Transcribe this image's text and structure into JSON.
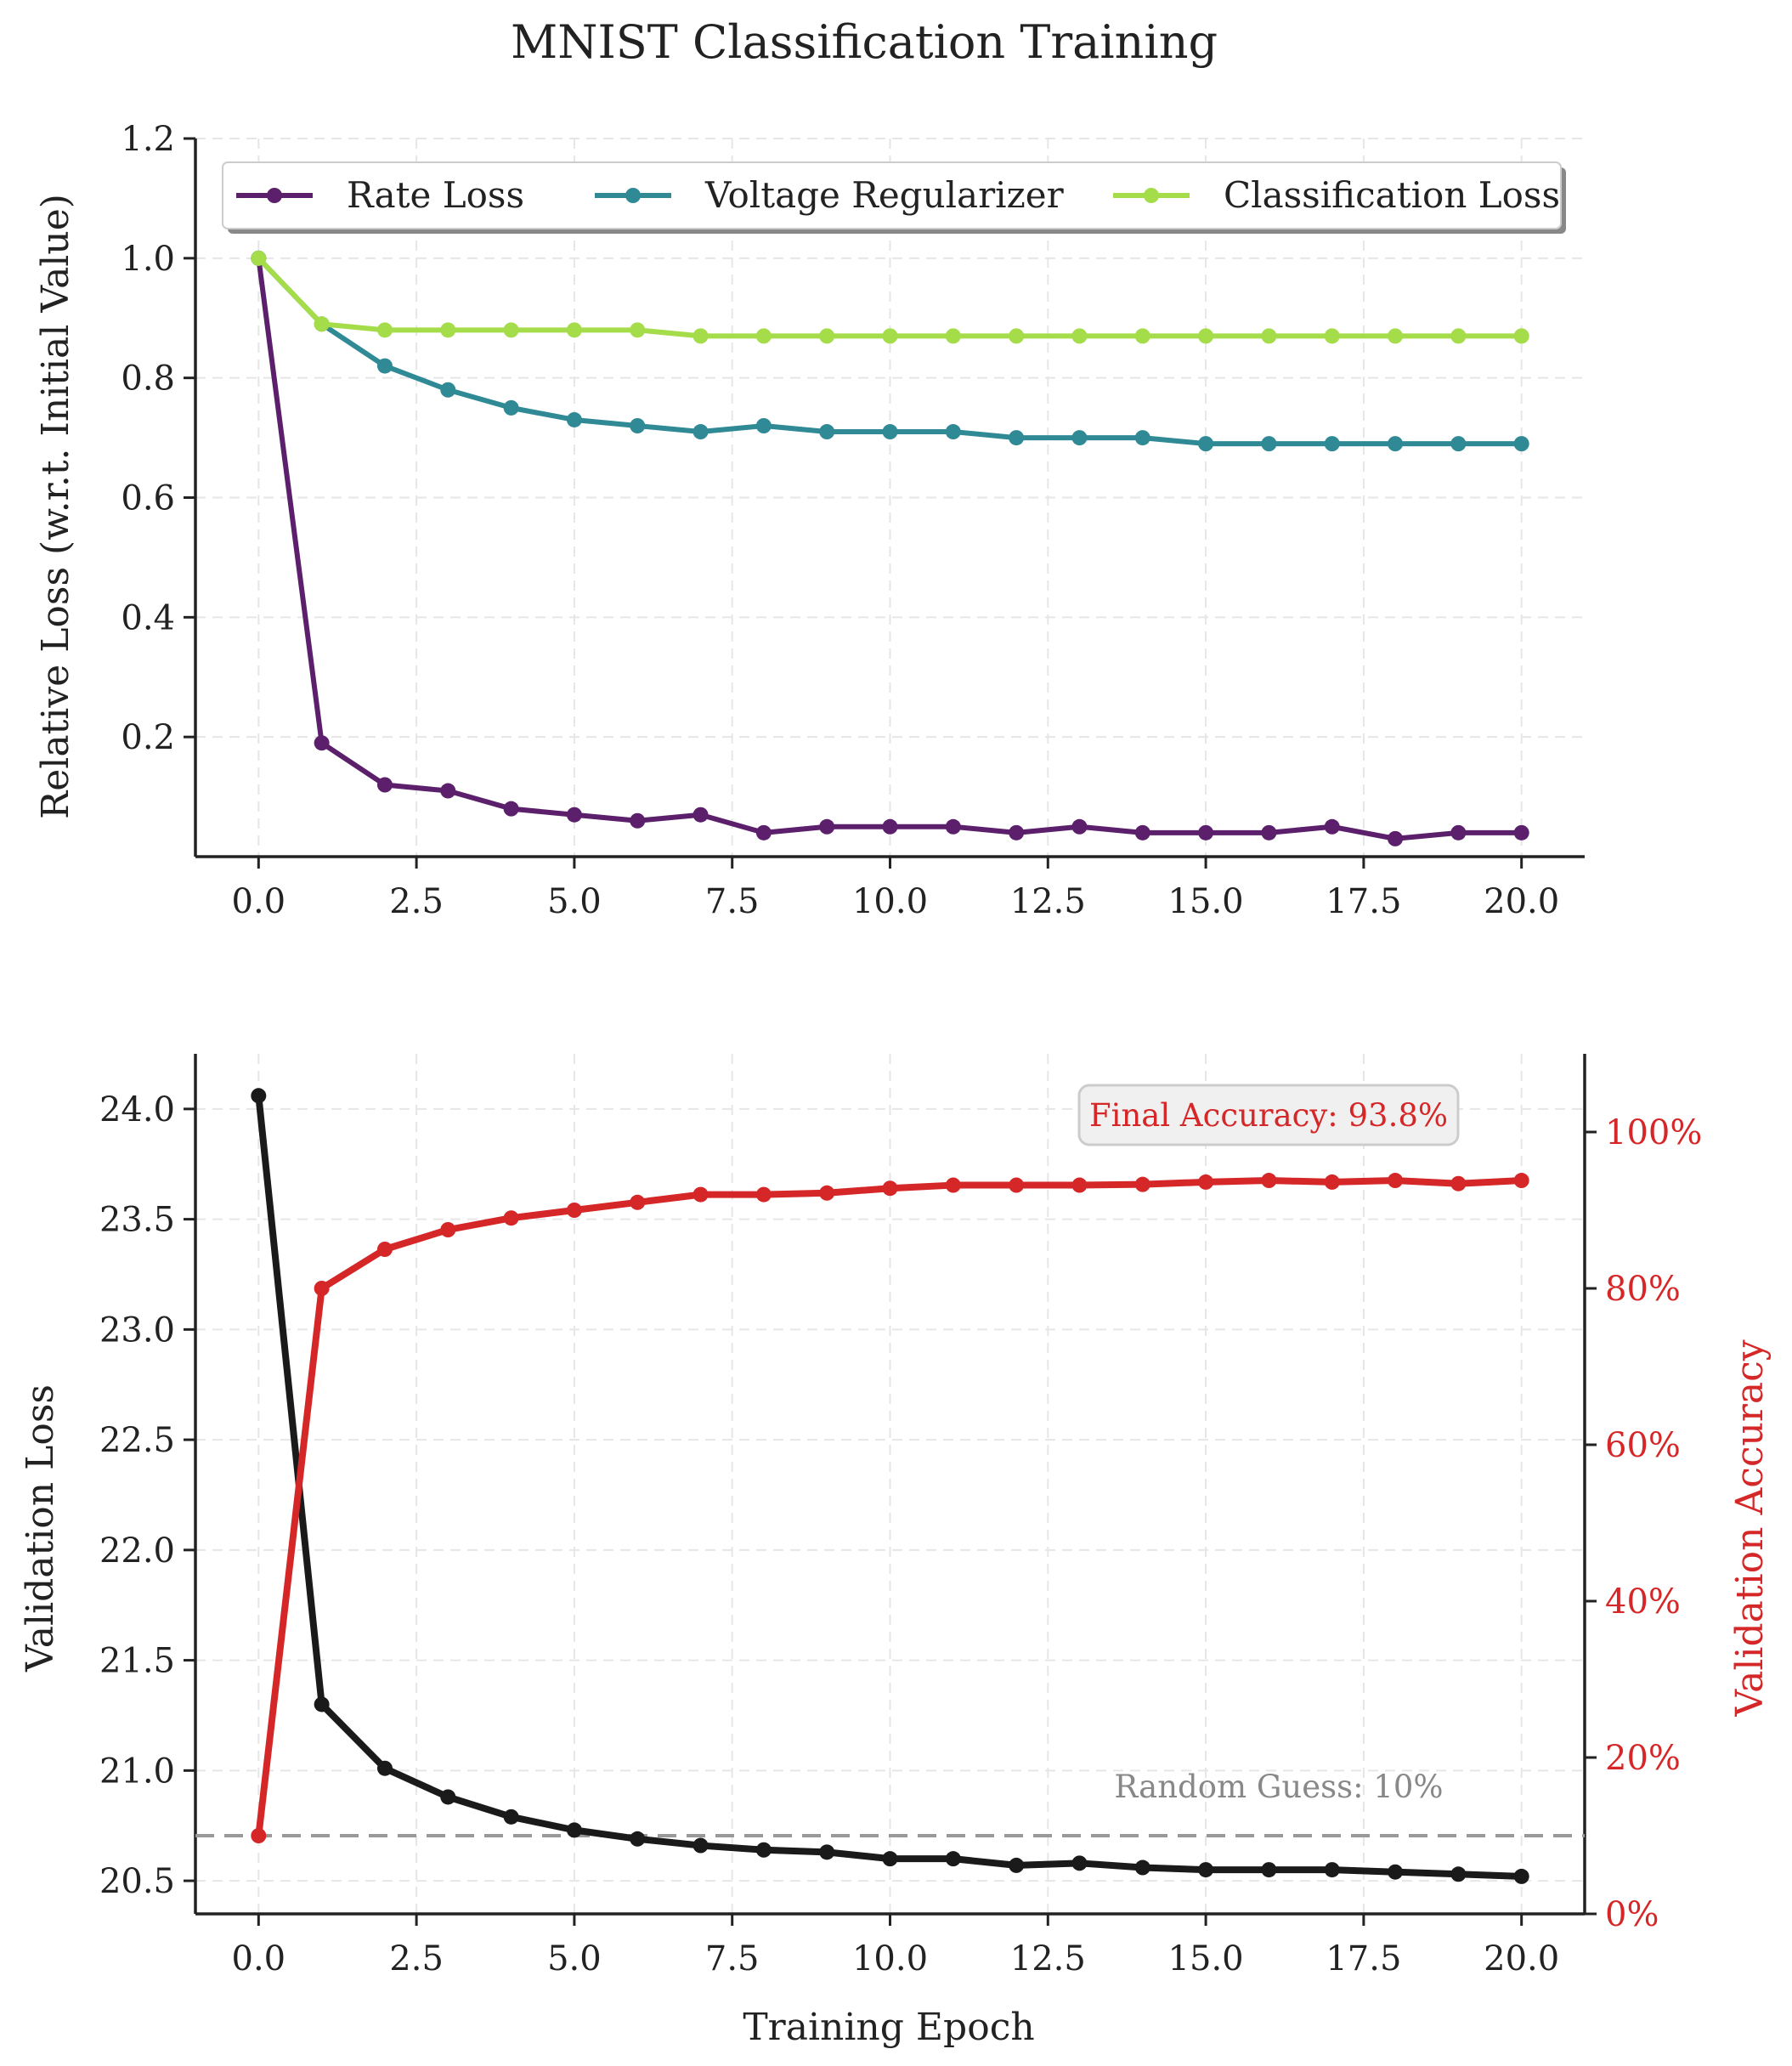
{
  "title": "MNIST Classification Training",
  "colors": {
    "rate_loss": "#5b1f6b",
    "voltage_regularizer": "#2f8a96",
    "classification_loss": "#a5dc4a",
    "validation_loss": "#1a1a1a",
    "validation_accuracy": "#d62728",
    "random_guess_line": "#999999"
  },
  "chart_data": [
    {
      "type": "line",
      "ylabel": "Relative Loss (w.r.t. Initial Value)",
      "xlim": [
        -1,
        21
      ],
      "ylim": [
        0.0,
        1.2
      ],
      "xticks": [
        "0.0",
        "2.5",
        "5.0",
        "7.5",
        "10.0",
        "12.5",
        "15.0",
        "17.5",
        "20.0"
      ],
      "yticks": [
        "0.2",
        "0.4",
        "0.6",
        "0.8",
        "1.0",
        "1.2"
      ],
      "grid": true,
      "legend_position": "top",
      "x": [
        0,
        1,
        2,
        3,
        4,
        5,
        6,
        7,
        8,
        9,
        10,
        11,
        12,
        13,
        14,
        15,
        16,
        17,
        18,
        19,
        20
      ],
      "series": [
        {
          "name": "Rate Loss",
          "values": [
            1.0,
            0.19,
            0.12,
            0.11,
            0.08,
            0.07,
            0.06,
            0.07,
            0.04,
            0.05,
            0.05,
            0.05,
            0.04,
            0.05,
            0.04,
            0.04,
            0.04,
            0.05,
            0.03,
            0.04,
            0.04
          ]
        },
        {
          "name": "Voltage Regularizer",
          "values": [
            1.0,
            0.89,
            0.82,
            0.78,
            0.75,
            0.73,
            0.72,
            0.71,
            0.72,
            0.71,
            0.71,
            0.71,
            0.7,
            0.7,
            0.7,
            0.69,
            0.69,
            0.69,
            0.69,
            0.69,
            0.69
          ]
        },
        {
          "name": "Classification Loss",
          "values": [
            1.0,
            0.89,
            0.88,
            0.88,
            0.88,
            0.88,
            0.88,
            0.87,
            0.87,
            0.87,
            0.87,
            0.87,
            0.87,
            0.87,
            0.87,
            0.87,
            0.87,
            0.87,
            0.87,
            0.87,
            0.87
          ]
        }
      ]
    },
    {
      "type": "line",
      "xlabel": "Training Epoch",
      "ylabel": "Validation Loss",
      "y2label": "Validation Accuracy",
      "xlim": [
        -1,
        21
      ],
      "ylim": [
        20.35,
        24.25
      ],
      "y2lim": [
        0,
        110
      ],
      "xticks": [
        "0.0",
        "2.5",
        "5.0",
        "7.5",
        "10.0",
        "12.5",
        "15.0",
        "17.5",
        "20.0"
      ],
      "yticks": [
        "20.5",
        "21.0",
        "21.5",
        "22.0",
        "22.5",
        "23.0",
        "23.5",
        "24.0"
      ],
      "y2ticks": [
        "0%",
        "20%",
        "40%",
        "60%",
        "80%",
        "100%"
      ],
      "grid": true,
      "x": [
        0,
        1,
        2,
        3,
        4,
        5,
        6,
        7,
        8,
        9,
        10,
        11,
        12,
        13,
        14,
        15,
        16,
        17,
        18,
        19,
        20
      ],
      "series": [
        {
          "axis": "left",
          "values": [
            24.06,
            21.3,
            21.01,
            20.88,
            20.79,
            20.73,
            20.69,
            20.66,
            20.64,
            20.63,
            20.6,
            20.6,
            20.57,
            20.58,
            20.56,
            20.55,
            20.55,
            20.55,
            20.54,
            20.53,
            20.52
          ]
        },
        {
          "axis": "right",
          "values": [
            10,
            80,
            85,
            87.5,
            89,
            90,
            91,
            92,
            92,
            92.2,
            92.8,
            93.2,
            93.2,
            93.2,
            93.3,
            93.6,
            93.8,
            93.6,
            93.8,
            93.4,
            93.8
          ]
        }
      ],
      "random_guess_level": 10,
      "annotations": {
        "final_accuracy": "Final Accuracy: 93.8%",
        "random_guess": "Random Guess: 10%"
      }
    }
  ]
}
